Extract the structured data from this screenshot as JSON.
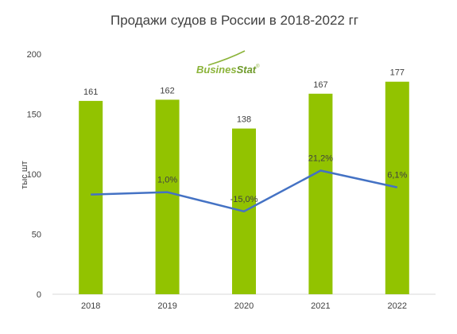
{
  "chart_data": {
    "type": "bar",
    "title": "Продажи судов в России в 2018-2022 гг",
    "ylabel": "тыс шт",
    "xlabel": "",
    "ylim": [
      0,
      200
    ],
    "yticks": [
      0,
      50,
      100,
      150,
      200
    ],
    "grid": false,
    "categories": [
      "2018",
      "2019",
      "2020",
      "2021",
      "2022"
    ],
    "series": [
      {
        "type": "bar",
        "color": "#92c300",
        "values": [
          161,
          162,
          138,
          167,
          177
        ],
        "labels": [
          "161",
          "162",
          "138",
          "167",
          "177"
        ]
      },
      {
        "type": "line",
        "color": "#4472c4",
        "values": [
          83,
          85,
          69,
          103,
          89
        ],
        "labels": [
          "",
          "1,0%",
          "-15,0%",
          "21,2%",
          "6,1%"
        ]
      }
    ]
  },
  "logo": {
    "part1": "Busines",
    "part2": "Stat",
    "mark": "®"
  }
}
